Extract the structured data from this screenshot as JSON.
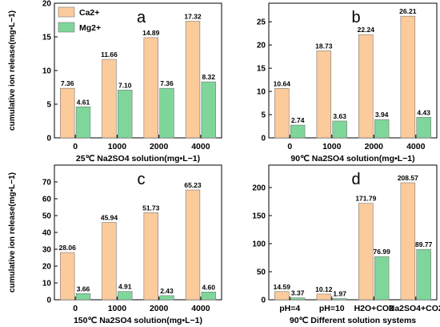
{
  "colors": {
    "ca": "#FCCB9B",
    "mg": "#7FD69A",
    "edge": "#777777"
  },
  "legend": [
    {
      "label": "Ca2+",
      "color": "#FCCB9B"
    },
    {
      "label": "Mg2+",
      "color": "#7FD69A"
    }
  ],
  "chart_data": [
    {
      "type": "bar",
      "panel": "a",
      "categories": [
        "0",
        "1000",
        "2000",
        "4000"
      ],
      "series": [
        {
          "name": "Ca2+",
          "values": [
            7.36,
            11.66,
            14.89,
            17.32
          ]
        },
        {
          "name": "Mg2+",
          "values": [
            4.61,
            7.1,
            7.36,
            8.32
          ]
        }
      ],
      "value_labels": [
        [
          "7.36",
          "11.66",
          "14.89",
          "17.32"
        ],
        [
          "4.61",
          "7.10",
          "7.36",
          "8.32"
        ]
      ],
      "xlabel": "25℃ Na2SO4 solution(mg•L−1)",
      "ylabel": "cumulative ion release(mg•L−1)",
      "ylim": [
        0,
        20
      ],
      "yticks": [
        0,
        5,
        10,
        15,
        20
      ]
    },
    {
      "type": "bar",
      "panel": "b",
      "categories": [
        "0",
        "1000",
        "2000",
        "4000"
      ],
      "series": [
        {
          "name": "Ca2+",
          "values": [
            10.64,
            18.73,
            22.24,
            26.21
          ]
        },
        {
          "name": "Mg2+",
          "values": [
            2.74,
            3.63,
            3.94,
            4.43
          ]
        }
      ],
      "value_labels": [
        [
          "10.64",
          "18.73",
          "22.24",
          "26.21"
        ],
        [
          "2.74",
          "3.63",
          "3.94",
          "4.43"
        ]
      ],
      "xlabel": "90℃ Na2SO4 solution(mg•L−1)",
      "ylabel": "",
      "ylim": [
        0,
        29
      ],
      "yticks": [
        0,
        5,
        10,
        15,
        20,
        25
      ]
    },
    {
      "type": "bar",
      "panel": "c",
      "categories": [
        "0",
        "1000",
        "2000",
        "4000"
      ],
      "series": [
        {
          "name": "Ca2+",
          "values": [
            28.06,
            45.94,
            51.73,
            65.23
          ]
        },
        {
          "name": "Mg2+",
          "values": [
            3.66,
            4.91,
            2.43,
            4.6
          ]
        }
      ],
      "value_labels": [
        [
          "28.06",
          "45.94",
          "51.73",
          "65.23"
        ],
        [
          "3.66",
          "4.91",
          "2.43",
          "4.60"
        ]
      ],
      "xlabel": "150℃ Na2SO4 solution(mg•L−1)",
      "ylabel": "cumulative ion release(mg•L−1)",
      "ylim": [
        0,
        80
      ],
      "yticks": [
        0,
        10,
        20,
        30,
        40,
        50,
        60,
        70
      ]
    },
    {
      "type": "bar",
      "panel": "d",
      "categories": [
        "pH=4",
        "pH=10",
        "H2O+CO2",
        "Na2SO4+CO2"
      ],
      "series": [
        {
          "name": "Ca2+",
          "values": [
            14.59,
            10.12,
            171.79,
            208.57
          ]
        },
        {
          "name": "Mg2+",
          "values": [
            3.37,
            1.97,
            76.99,
            89.77
          ]
        }
      ],
      "value_labels": [
        [
          "14.59",
          "10.12",
          "171.79",
          "208.57"
        ],
        [
          "3.37",
          "1.97",
          "76.99",
          "89.77"
        ]
      ],
      "xlabel": "90℃ Different solution systems",
      "ylabel": "",
      "ylim": [
        0,
        240
      ],
      "yticks": [
        0,
        50,
        100,
        150,
        200
      ]
    }
  ]
}
